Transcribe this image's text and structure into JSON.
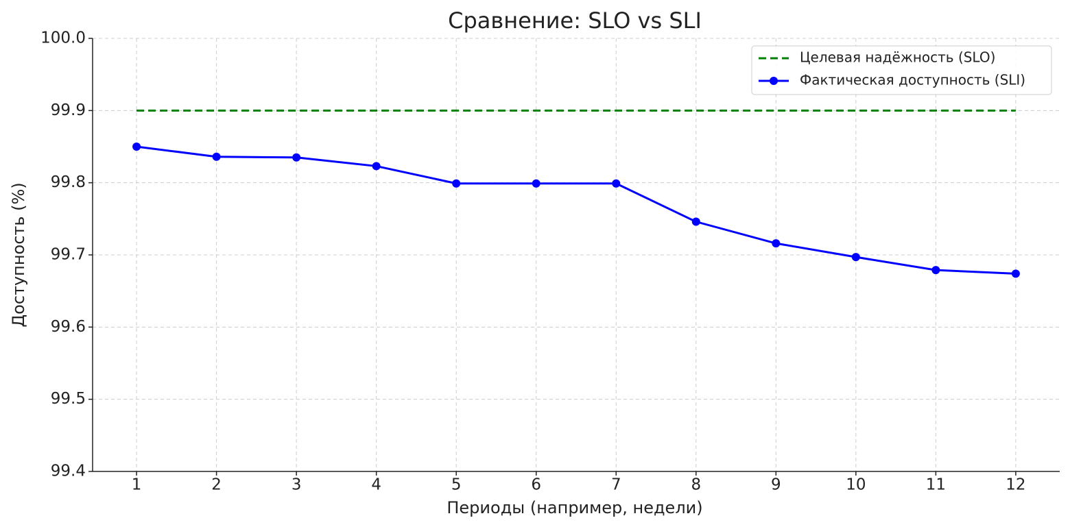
{
  "chart_data": {
    "type": "line",
    "title": "Сравнение: SLO vs SLI",
    "xlabel": "Периоды (например, недели)",
    "ylabel": "Доступность (%)",
    "x": [
      1,
      2,
      3,
      4,
      5,
      6,
      7,
      8,
      9,
      10,
      11,
      12
    ],
    "series": [
      {
        "name": "Целевая надёжность (SLO)",
        "color": "#008000",
        "linestyle": "dashed",
        "marker": "none",
        "values": [
          99.9,
          99.9,
          99.9,
          99.9,
          99.9,
          99.9,
          99.9,
          99.9,
          99.9,
          99.9,
          99.9,
          99.9
        ]
      },
      {
        "name": "Фактическая доступность (SLI)",
        "color": "#0000ff",
        "linestyle": "solid",
        "marker": "circle",
        "values": [
          99.85,
          99.836,
          99.835,
          99.823,
          99.799,
          99.799,
          99.799,
          99.746,
          99.716,
          99.697,
          99.679,
          99.674
        ]
      }
    ],
    "xlim": [
      0.45,
      12.55
    ],
    "xticks": [
      1,
      2,
      3,
      4,
      5,
      6,
      7,
      8,
      9,
      10,
      11,
      12
    ],
    "ylim": [
      99.4,
      100.0
    ],
    "yticks": [
      99.4,
      99.5,
      99.6,
      99.7,
      99.8,
      99.9,
      {
        "value": 100.0,
        "label": "100.0"
      }
    ],
    "grid": true,
    "legend": "upper right"
  }
}
